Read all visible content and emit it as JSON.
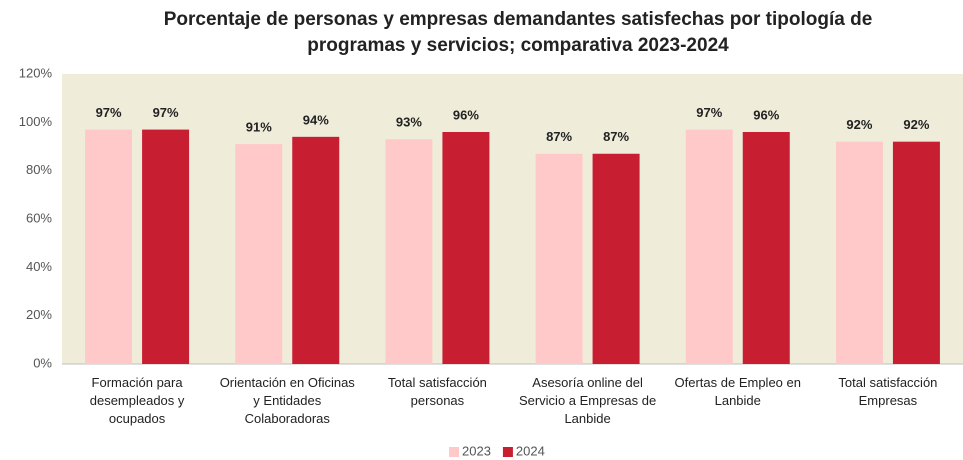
{
  "chart_data": {
    "type": "bar",
    "title": "Porcentaje de personas y empresas demandantes satisfechas por tipología de programas y servicios; comparativa 2023-2024",
    "categories": [
      "Formación para desempleados y ocupados",
      "Orientación en Oficinas y Entidades Colaboradoras",
      "Total satisfacción personas",
      "Asesoría online del Servicio a Empresas de Lanbide",
      "Ofertas de Empleo en Lanbide",
      "Total satisfacción Empresas"
    ],
    "series": [
      {
        "name": "2023",
        "color": "#ffc9c9",
        "values": [
          97,
          91,
          93,
          87,
          97,
          92
        ],
        "value_labels": [
          "97%",
          "91%",
          "93%",
          "87%",
          "97%",
          "92%"
        ]
      },
      {
        "name": "2024",
        "color": "#c81e32",
        "values": [
          97,
          94,
          96,
          87,
          96,
          92
        ],
        "value_labels": [
          "97%",
          "94%",
          "96%",
          "87%",
          "96%",
          "92%"
        ]
      }
    ],
    "ylim": [
      0,
      120
    ],
    "yticks": [
      {
        "value": 0,
        "label": "0%"
      },
      {
        "value": 20,
        "label": "20%"
      },
      {
        "value": 40,
        "label": "40%"
      },
      {
        "value": 60,
        "label": "60%"
      },
      {
        "value": 80,
        "label": "80%"
      },
      {
        "value": 100,
        "label": "100%"
      },
      {
        "value": 120,
        "label": "120%"
      }
    ],
    "grid": false,
    "legend": "bottom"
  }
}
